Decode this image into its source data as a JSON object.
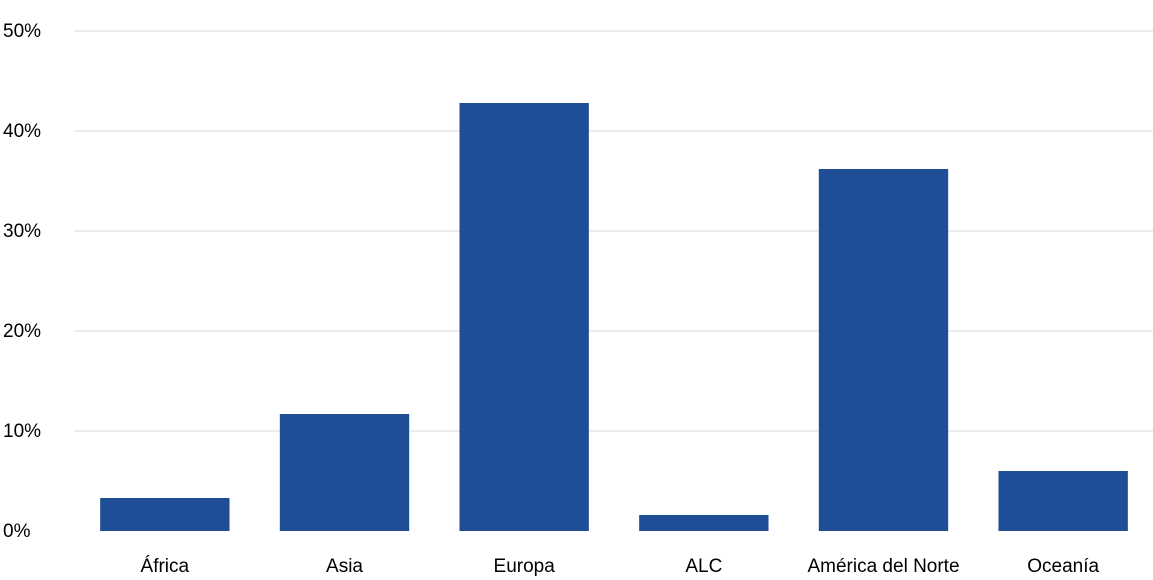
{
  "chart_data": {
    "type": "bar",
    "categories": [
      "África",
      "Asia",
      "Europa",
      "ALC",
      "América del Norte",
      "Oceanía"
    ],
    "values": [
      3.3,
      11.7,
      42.8,
      1.6,
      36.2,
      6.0
    ],
    "ylim": [
      0,
      50
    ],
    "yticks": [
      0,
      10,
      20,
      30,
      40,
      50
    ],
    "ytick_labels": [
      "0%",
      "10%",
      "20%",
      "30%",
      "40%",
      "50%"
    ],
    "grid": true,
    "bar_color": "#1f4e96",
    "grid_color": "#d9d9d9"
  }
}
